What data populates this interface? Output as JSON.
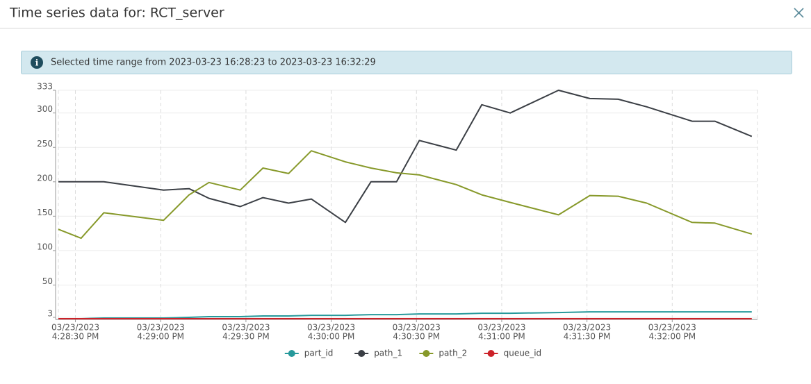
{
  "header": {
    "title": "Time series data for: RCT_server"
  },
  "banner": {
    "text": "Selected time range from 2023-03-23 16:28:23 to 2023-03-23 16:32:29"
  },
  "chart_data": {
    "type": "line",
    "x": [
      "2023-03-23T16:28:24",
      "2023-03-23T16:28:32",
      "2023-03-23T16:28:40",
      "2023-03-23T16:29:01",
      "2023-03-23T16:29:10",
      "2023-03-23T16:29:17",
      "2023-03-23T16:29:28",
      "2023-03-23T16:29:36",
      "2023-03-23T16:29:45",
      "2023-03-23T16:29:53",
      "2023-03-23T16:30:05",
      "2023-03-23T16:30:14",
      "2023-03-23T16:30:23",
      "2023-03-23T16:30:31",
      "2023-03-23T16:30:44",
      "2023-03-23T16:30:53",
      "2023-03-23T16:31:03",
      "2023-03-23T16:31:20",
      "2023-03-23T16:31:31",
      "2023-03-23T16:31:41",
      "2023-03-23T16:31:51",
      "2023-03-23T16:32:07",
      "2023-03-23T16:32:15",
      "2023-03-23T16:32:28"
    ],
    "series": [
      {
        "name": "part_id",
        "color": "#26999b",
        "values": [
          1,
          1,
          2,
          2,
          3,
          4,
          4,
          5,
          5,
          6,
          6,
          7,
          7,
          8,
          8,
          9,
          9,
          10,
          11,
          11,
          11,
          11,
          11,
          11
        ]
      },
      {
        "name": "path_1",
        "color": "#3b3f45",
        "values": [
          200,
          200,
          200,
          188,
          190,
          176,
          164,
          177,
          169,
          175,
          141,
          200,
          200,
          260,
          246,
          312,
          300,
          333,
          321,
          320,
          309,
          288,
          288,
          266
        ]
      },
      {
        "name": "path_2",
        "color": "#87992a",
        "values": [
          131,
          118,
          155,
          144,
          181,
          199,
          188,
          220,
          212,
          245,
          229,
          220,
          213,
          210,
          196,
          181,
          170,
          152,
          180,
          179,
          169,
          141,
          140,
          124
        ]
      },
      {
        "name": "queue_id",
        "color": "#cc2229",
        "values": [
          1,
          1,
          1,
          1,
          1,
          1,
          1,
          1,
          1,
          1,
          1,
          1,
          1,
          1,
          1,
          1,
          1,
          1,
          1,
          1,
          1,
          1,
          1,
          1
        ]
      }
    ],
    "xlim": [
      "2023-03-23T16:28:24",
      "2023-03-23T16:32:30"
    ],
    "xticks": [
      {
        "value": "2023-03-23T16:28:30",
        "label": [
          "03/23/2023",
          "4:28:30 PM"
        ]
      },
      {
        "value": "2023-03-23T16:29:00",
        "label": [
          "03/23/2023",
          "4:29:00 PM"
        ]
      },
      {
        "value": "2023-03-23T16:29:30",
        "label": [
          "03/23/2023",
          "4:29:30 PM"
        ]
      },
      {
        "value": "2023-03-23T16:30:00",
        "label": [
          "03/23/2023",
          "4:30:00 PM"
        ]
      },
      {
        "value": "2023-03-23T16:30:30",
        "label": [
          "03/23/2023",
          "4:30:30 PM"
        ]
      },
      {
        "value": "2023-03-23T16:31:00",
        "label": [
          "03/23/2023",
          "4:31:00 PM"
        ]
      },
      {
        "value": "2023-03-23T16:31:30",
        "label": [
          "03/23/2023",
          "4:31:30 PM"
        ]
      },
      {
        "value": "2023-03-23T16:32:00",
        "label": [
          "03/23/2023",
          "4:32:00 PM"
        ]
      }
    ],
    "ylim": [
      0,
      333
    ],
    "yticks": [
      3,
      50,
      100,
      150,
      200,
      250,
      300,
      333
    ],
    "grid": true,
    "legend": "bottom"
  }
}
